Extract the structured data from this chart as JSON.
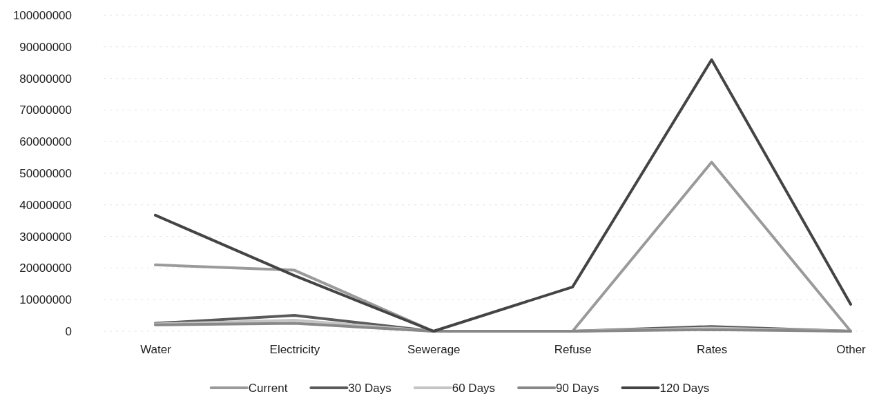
{
  "chart_data": {
    "type": "line",
    "categories": [
      "Water",
      "Electricity",
      "Sewerage",
      "Refuse",
      "Rates",
      "Other"
    ],
    "series": [
      {
        "name": "Current",
        "color": "#9a9a9a",
        "values": [
          21000000,
          19300000,
          0,
          0,
          53500000,
          0
        ]
      },
      {
        "name": "30 Days",
        "color": "#5a5a5a",
        "values": [
          2500000,
          5000000,
          0,
          0,
          1500000,
          0
        ]
      },
      {
        "name": "60 Days",
        "color": "#c4c4c4",
        "values": [
          2300000,
          3500000,
          0,
          0,
          1000000,
          0
        ]
      },
      {
        "name": "90 Days",
        "color": "#888888",
        "values": [
          2000000,
          2500000,
          0,
          0,
          500000,
          0
        ]
      },
      {
        "name": "120 Days",
        "color": "#444444",
        "values": [
          36700000,
          17600000,
          0,
          14000000,
          85900000,
          8500000
        ]
      }
    ],
    "ylim": [
      0,
      100000000
    ],
    "yticks": [
      0,
      10000000,
      20000000,
      30000000,
      40000000,
      50000000,
      60000000,
      70000000,
      80000000,
      90000000,
      100000000
    ],
    "grid": "y",
    "legend": "bottom",
    "marker": "none",
    "line_style": "solid"
  }
}
